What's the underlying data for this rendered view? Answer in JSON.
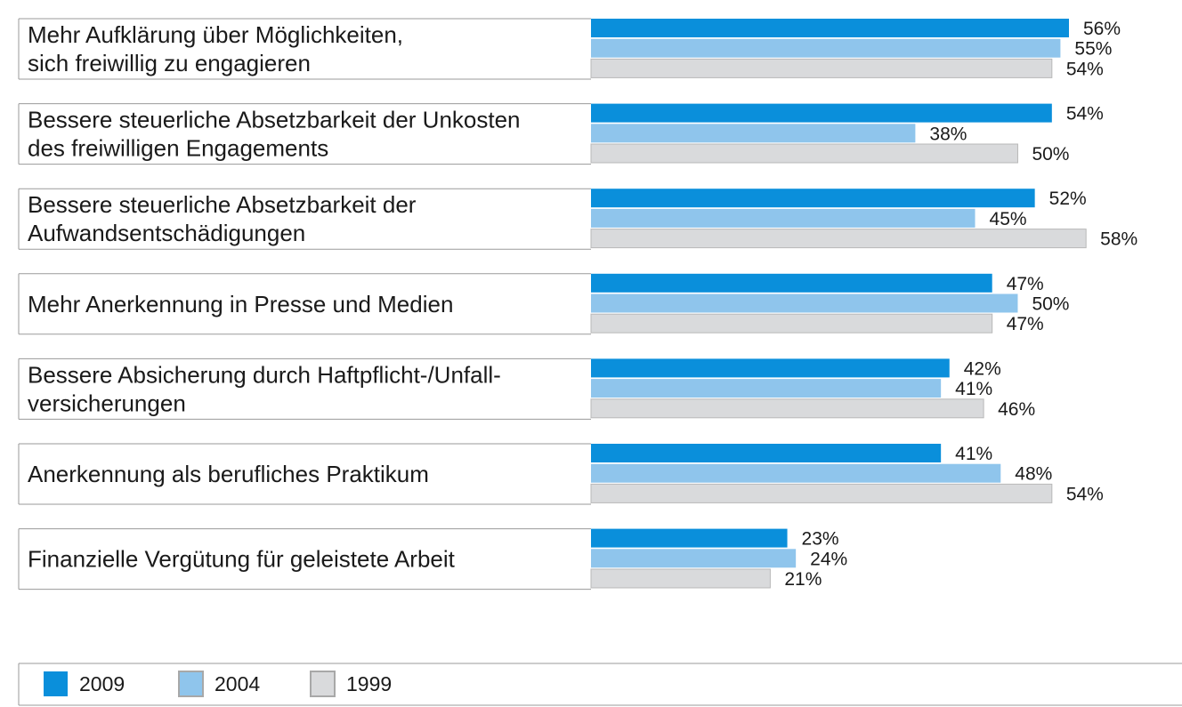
{
  "chart_data": {
    "type": "bar",
    "orientation": "horizontal",
    "categories": [
      [
        "Mehr Aufklärung über Möglichkeiten,",
        "sich freiwillig zu engagieren"
      ],
      [
        "Bessere steuerliche Absetzbarkeit der Unkosten",
        "des freiwilligen Engagements"
      ],
      [
        "Bessere steuerliche Absetzbarkeit der",
        "Aufwandsentschädigungen"
      ],
      [
        "Mehr Anerkennung in Presse und Medien"
      ],
      [
        "Bessere Absicherung durch Haftpflicht-/Unfall-",
        "versicherungen"
      ],
      [
        "Anerkennung als berufliches Praktikum"
      ],
      [
        "Finanzielle Vergütung für geleistete Arbeit"
      ]
    ],
    "series": [
      {
        "name": "2009",
        "color": "#0a8fdb",
        "values": [
          56,
          54,
          52,
          47,
          42,
          41,
          23
        ]
      },
      {
        "name": "2004",
        "color": "#8fc5ec",
        "values": [
          55,
          38,
          45,
          50,
          41,
          48,
          24
        ]
      },
      {
        "name": "1999",
        "color": "#d9dadc",
        "values": [
          54,
          50,
          58,
          47,
          46,
          54,
          21
        ]
      }
    ],
    "value_suffix": "%",
    "xlim": [
      0,
      60
    ],
    "legend_position": "bottom-left",
    "grid": false
  }
}
